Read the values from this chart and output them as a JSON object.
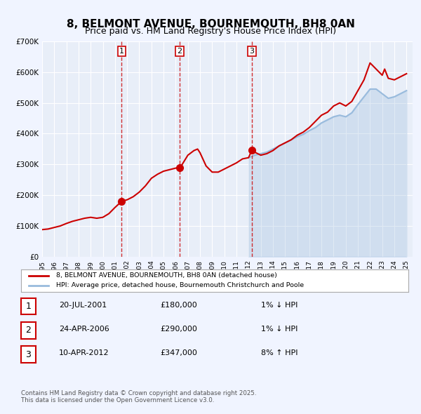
{
  "title": "8, BELMONT AVENUE, BOURNEMOUTH, BH8 0AN",
  "subtitle": "Price paid vs. HM Land Registry's House Price Index (HPI)",
  "title_fontsize": 11,
  "subtitle_fontsize": 9,
  "background_color": "#f0f4ff",
  "plot_bg_color": "#e8eef8",
  "red_line_color": "#cc0000",
  "blue_line_color": "#99bbdd",
  "dashed_line_color": "#cc0000",
  "grid_color": "#ffffff",
  "ylim": [
    0,
    700000
  ],
  "xlim_start": 1995,
  "xlim_end": 2025.5,
  "yticks": [
    0,
    100000,
    200000,
    300000,
    400000,
    500000,
    600000,
    700000
  ],
  "ytick_labels": [
    "£0",
    "£100K",
    "£200K",
    "£300K",
    "£400K",
    "£500K",
    "£600K",
    "£700K"
  ],
  "xticks": [
    1995,
    1996,
    1997,
    1998,
    1999,
    2000,
    2001,
    2002,
    2003,
    2004,
    2005,
    2006,
    2007,
    2008,
    2009,
    2010,
    2011,
    2012,
    2013,
    2014,
    2015,
    2016,
    2017,
    2018,
    2019,
    2020,
    2021,
    2022,
    2023,
    2024,
    2025
  ],
  "sale_dates": [
    2001.55,
    2006.31,
    2012.27
  ],
  "sale_prices": [
    180000,
    290000,
    347000
  ],
  "sale_labels": [
    "1",
    "2",
    "3"
  ],
  "legend_red_label": "8, BELMONT AVENUE, BOURNEMOUTH, BH8 0AN (detached house)",
  "legend_blue_label": "HPI: Average price, detached house, Bournemouth Christchurch and Poole",
  "table_data": [
    {
      "num": "1",
      "date": "20-JUL-2001",
      "price": "£180,000",
      "hpi": "1% ↓ HPI"
    },
    {
      "num": "2",
      "date": "24-APR-2006",
      "price": "£290,000",
      "hpi": "1% ↓ HPI"
    },
    {
      "num": "3",
      "date": "10-APR-2012",
      "price": "£347,000",
      "hpi": "8% ↑ HPI"
    }
  ],
  "footer": "Contains HM Land Registry data © Crown copyright and database right 2025.\nThis data is licensed under the Open Government Licence v3.0.",
  "red_hpi_x": [
    1995.0,
    1995.5,
    1996.0,
    1996.5,
    1997.0,
    1997.5,
    1998.0,
    1998.5,
    1999.0,
    1999.5,
    2000.0,
    2000.5,
    2001.0,
    2001.55,
    2002.0,
    2002.5,
    2003.0,
    2003.5,
    2004.0,
    2004.5,
    2005.0,
    2005.5,
    2006.0,
    2006.31,
    2006.5,
    2007.0,
    2007.5,
    2007.8,
    2008.0,
    2008.5,
    2009.0,
    2009.5,
    2010.0,
    2010.5,
    2011.0,
    2011.5,
    2012.0,
    2012.27,
    2012.5,
    2013.0,
    2013.5,
    2014.0,
    2014.5,
    2015.0,
    2015.5,
    2016.0,
    2016.5,
    2017.0,
    2017.5,
    2018.0,
    2018.5,
    2019.0,
    2019.5,
    2020.0,
    2020.5,
    2021.0,
    2021.5,
    2022.0,
    2022.5,
    2023.0,
    2023.2,
    2023.5,
    2024.0,
    2024.5,
    2025.0
  ],
  "red_hpi_y": [
    88000,
    90000,
    95000,
    100000,
    108000,
    115000,
    120000,
    125000,
    128000,
    125000,
    128000,
    140000,
    160000,
    180000,
    185000,
    195000,
    210000,
    230000,
    255000,
    268000,
    278000,
    283000,
    288000,
    290000,
    298000,
    330000,
    345000,
    350000,
    338000,
    295000,
    275000,
    275000,
    285000,
    295000,
    305000,
    318000,
    322000,
    347000,
    340000,
    330000,
    335000,
    345000,
    360000,
    370000,
    380000,
    395000,
    405000,
    420000,
    440000,
    460000,
    470000,
    490000,
    500000,
    490000,
    505000,
    540000,
    575000,
    630000,
    610000,
    590000,
    610000,
    580000,
    575000,
    585000,
    595000
  ],
  "blue_hpi_x": [
    2012.0,
    2012.5,
    2013.0,
    2013.5,
    2014.0,
    2014.5,
    2015.0,
    2015.5,
    2016.0,
    2016.5,
    2017.0,
    2017.5,
    2018.0,
    2018.5,
    2019.0,
    2019.5,
    2020.0,
    2020.5,
    2021.0,
    2021.5,
    2022.0,
    2022.5,
    2023.0,
    2023.5,
    2024.0,
    2024.5,
    2025.0
  ],
  "blue_hpi_y": [
    322000,
    330000,
    335000,
    340000,
    350000,
    360000,
    370000,
    380000,
    390000,
    398000,
    410000,
    420000,
    435000,
    445000,
    455000,
    460000,
    455000,
    468000,
    495000,
    520000,
    545000,
    545000,
    530000,
    515000,
    520000,
    530000,
    540000
  ]
}
